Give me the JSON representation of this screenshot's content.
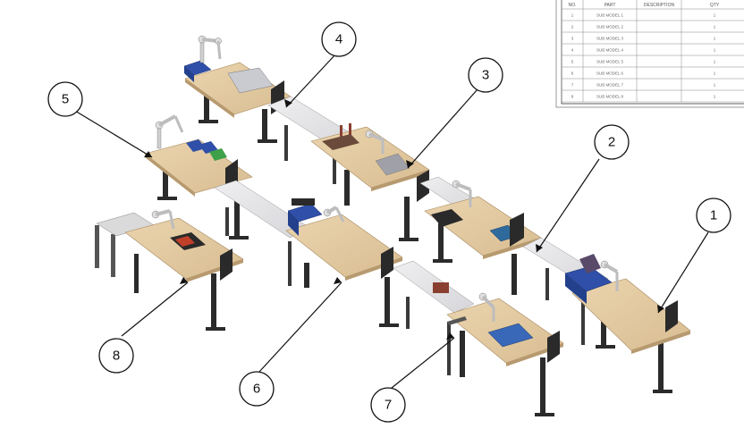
{
  "callouts": [
    "1",
    "2",
    "3",
    "4",
    "5",
    "6",
    "7",
    "8"
  ],
  "bom": {
    "headers": [
      "NO.",
      "PART",
      "DESCRIPTION",
      "QTY"
    ],
    "rows": [
      [
        "1",
        "SUB MODEL 1",
        "",
        "1"
      ],
      [
        "2",
        "SUB MODEL 2",
        "",
        "1"
      ],
      [
        "3",
        "SUB MODEL 3",
        "",
        "1"
      ],
      [
        "4",
        "SUB MODEL 4",
        "",
        "1"
      ],
      [
        "5",
        "SUB MODEL 5",
        "",
        "1"
      ],
      [
        "6",
        "SUB MODEL 6",
        "",
        "1"
      ],
      [
        "7",
        "SUB MODEL 7",
        "",
        "1"
      ],
      [
        "8",
        "SUB MODEL 8",
        "",
        "1"
      ]
    ]
  },
  "colors": {
    "wood": "#e2c8a0",
    "wood_edge": "#b89a70",
    "conveyor": "#e6e6e8",
    "leg": "#2b2b2b",
    "bin_blue": "#2f4fa8",
    "bin_green": "#3fa04a",
    "robot": "#d8d8d8"
  }
}
